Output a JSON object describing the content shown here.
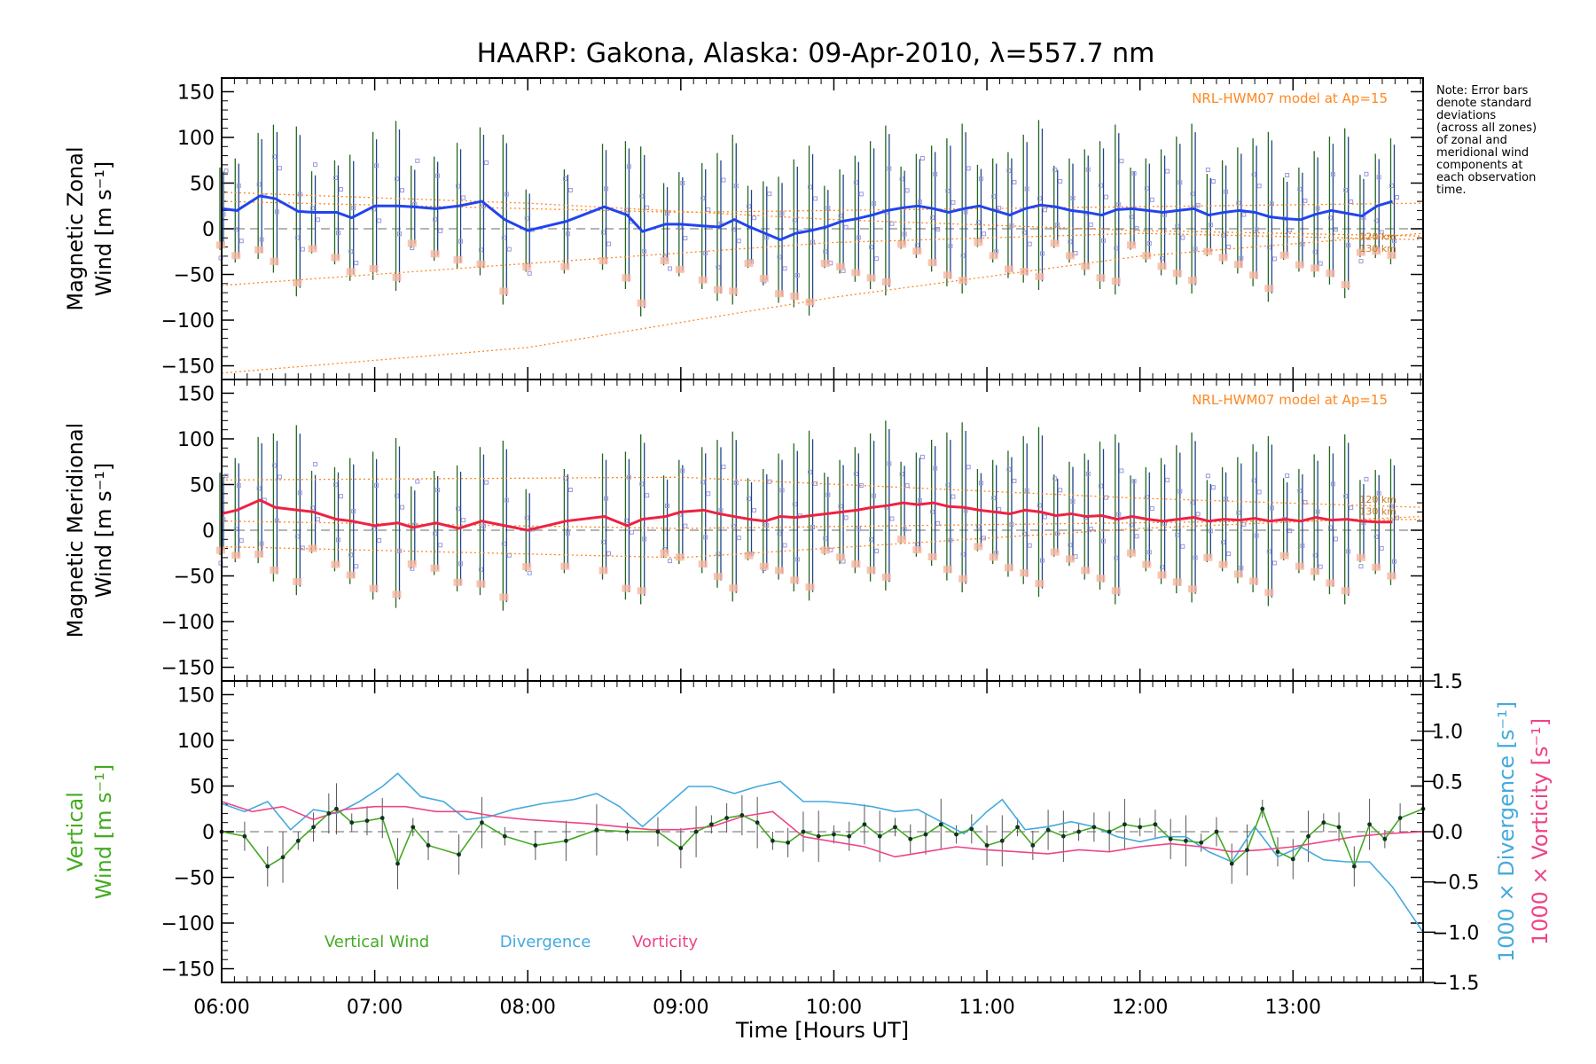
{
  "figure": {
    "title": "HAARP: Gakona,  Alaska: 09-Apr-2010, λ=557.7 nm",
    "note_lines": [
      "Note: Error bars",
      "denote standard",
      "deviations",
      "(across all zones)",
      "of zonal and",
      "meridional wind",
      "components at",
      "each observation",
      "time."
    ],
    "xlabel": "Time [Hours UT]",
    "xticks": [
      "06:00",
      "07:00",
      "08:00",
      "09:00",
      "10:00",
      "11:00",
      "12:00",
      "13:00"
    ],
    "colors": {
      "zonal": "#2244ee",
      "meridional": "#ee2244",
      "vertical": "#44aa22",
      "divergence": "#44aadd",
      "vorticity": "#ee4488",
      "model": "#ff8822",
      "points": "#9999dd"
    }
  },
  "chart_data": [
    {
      "type": "line",
      "panel": "zonal",
      "ylabel_line1": "Magnetic Zonal",
      "ylabel_line2": "Wind [m s⁻¹]",
      "yticks": [
        "150",
        "100",
        "50",
        "0",
        "−50",
        "−100",
        "−150"
      ],
      "ylim": [
        -165,
        165
      ],
      "xlim": [
        6.0,
        13.85
      ],
      "model_label": "NRL-HWM07 model at Ap=15",
      "model_alt_labels": [
        "120 km",
        "130 km"
      ],
      "series": [
        {
          "values_x": [
            6.0,
            6.1,
            6.25,
            6.35,
            6.5,
            6.6,
            6.75,
            6.85,
            7.0,
            7.15,
            7.25,
            7.4,
            7.55,
            7.7,
            7.85,
            8.0,
            8.25,
            8.5,
            8.65,
            8.75,
            8.9,
            9.0,
            9.15,
            9.25,
            9.35,
            9.45,
            9.55,
            9.65,
            9.75,
            9.85,
            9.95,
            10.05,
            10.15,
            10.25,
            10.35,
            10.45,
            10.55,
            10.65,
            10.75,
            10.85,
            10.95,
            11.05,
            11.15,
            11.25,
            11.35,
            11.45,
            11.55,
            11.65,
            11.75,
            11.85,
            11.95,
            12.05,
            12.15,
            12.25,
            12.35,
            12.45,
            12.55,
            12.65,
            12.75,
            12.85,
            12.95,
            13.05,
            13.15,
            13.25,
            13.35,
            13.45,
            13.55,
            13.65
          ],
          "values_y": [
            22,
            20,
            36,
            33,
            19,
            18,
            18,
            12,
            25,
            25,
            24,
            22,
            25,
            30,
            10,
            -2,
            8,
            24,
            15,
            -3,
            5,
            5,
            3,
            2,
            10,
            2,
            -5,
            -12,
            -5,
            -2,
            2,
            8,
            11,
            15,
            20,
            23,
            25,
            22,
            18,
            22,
            25,
            20,
            15,
            22,
            26,
            24,
            20,
            18,
            15,
            21,
            22,
            20,
            18,
            20,
            22,
            15,
            18,
            20,
            18,
            13,
            11,
            10,
            16,
            20,
            17,
            14,
            25,
            30
          ]
        }
      ]
    },
    {
      "type": "line",
      "panel": "meridional",
      "ylabel_line1": "Magnetic Meridional",
      "ylabel_line2": "Wind [m s⁻¹]",
      "yticks": [
        "150",
        "100",
        "50",
        "0",
        "−50",
        "−100",
        "−150"
      ],
      "ylim": [
        -165,
        165
      ],
      "xlim": [
        6.0,
        13.85
      ],
      "model_label": "NRL-HWM07 model at Ap=15",
      "model_alt_labels": [
        "120 km",
        "130 km"
      ],
      "series": [
        {
          "values_x": [
            6.0,
            6.1,
            6.25,
            6.35,
            6.5,
            6.6,
            6.75,
            6.85,
            7.0,
            7.15,
            7.25,
            7.4,
            7.55,
            7.7,
            7.85,
            8.0,
            8.25,
            8.5,
            8.65,
            8.75,
            8.9,
            9.0,
            9.15,
            9.25,
            9.35,
            9.45,
            9.55,
            9.65,
            9.75,
            9.85,
            9.95,
            10.05,
            10.15,
            10.25,
            10.35,
            10.45,
            10.55,
            10.65,
            10.75,
            10.85,
            10.95,
            11.05,
            11.15,
            11.25,
            11.35,
            11.45,
            11.55,
            11.65,
            11.75,
            11.85,
            11.95,
            12.05,
            12.15,
            12.25,
            12.35,
            12.45,
            12.55,
            12.65,
            12.75,
            12.85,
            12.95,
            13.05,
            13.15,
            13.25,
            13.35,
            13.45,
            13.55,
            13.65
          ],
          "values_y": [
            18,
            22,
            33,
            25,
            22,
            20,
            12,
            10,
            5,
            8,
            3,
            8,
            2,
            10,
            5,
            0,
            10,
            15,
            5,
            12,
            15,
            20,
            22,
            18,
            15,
            12,
            10,
            15,
            14,
            16,
            18,
            20,
            22,
            25,
            27,
            30,
            28,
            30,
            26,
            25,
            22,
            20,
            18,
            22,
            20,
            16,
            18,
            15,
            16,
            12,
            15,
            12,
            10,
            12,
            14,
            10,
            12,
            11,
            13,
            10,
            12,
            10,
            14,
            11,
            12,
            10,
            9,
            9
          ]
        }
      ]
    },
    {
      "type": "line",
      "panel": "vertical",
      "ylabel_line1": "Vertical",
      "ylabel_line2": "Wind [m s⁻¹]",
      "y2label_div": "1000 × Divergence [s⁻¹]",
      "y2label_vort": "1000 × Vorticity [s⁻¹]",
      "yticks": [
        "150",
        "100",
        "50",
        "0",
        "−50",
        "−100",
        "−150"
      ],
      "y2ticks": [
        "1.5",
        "1.0",
        "0.5",
        "0.0",
        "−0.5",
        "−1.0",
        "−1.5"
      ],
      "ylim": [
        -165,
        165
      ],
      "y2lim": [
        -1.5,
        1.5
      ],
      "xlim": [
        6.0,
        13.85
      ],
      "legend": [
        "Vertical Wind",
        "Divergence",
        "Vorticity"
      ],
      "series": [
        {
          "name": "Vertical Wind",
          "values_x": [
            6.0,
            6.15,
            6.3,
            6.4,
            6.5,
            6.6,
            6.7,
            6.75,
            6.85,
            6.95,
            7.05,
            7.15,
            7.25,
            7.35,
            7.55,
            7.7,
            7.85,
            8.05,
            8.25,
            8.45,
            8.65,
            8.85,
            9.0,
            9.1,
            9.2,
            9.3,
            9.4,
            9.5,
            9.6,
            9.7,
            9.8,
            9.9,
            10.0,
            10.1,
            10.2,
            10.3,
            10.4,
            10.5,
            10.6,
            10.7,
            10.8,
            10.9,
            11.0,
            11.1,
            11.2,
            11.3,
            11.4,
            11.5,
            11.6,
            11.7,
            11.8,
            11.9,
            12.0,
            12.1,
            12.2,
            12.3,
            12.4,
            12.5,
            12.6,
            12.7,
            12.8,
            12.9,
            13.0,
            13.1,
            13.2,
            13.3,
            13.4,
            13.5,
            13.6,
            13.7,
            13.85
          ],
          "values_y": [
            0,
            -5,
            -38,
            -28,
            -10,
            5,
            20,
            25,
            10,
            12,
            15,
            -35,
            5,
            -15,
            -25,
            10,
            -5,
            -15,
            -10,
            2,
            0,
            0,
            -18,
            0,
            8,
            15,
            18,
            10,
            -10,
            -12,
            0,
            -5,
            -3,
            -5,
            8,
            -5,
            5,
            -8,
            -3,
            8,
            -3,
            3,
            -15,
            -10,
            5,
            -15,
            2,
            -5,
            0,
            5,
            0,
            8,
            5,
            8,
            -8,
            -10,
            -12,
            0,
            -35,
            -20,
            25,
            -22,
            -30,
            -5,
            10,
            5,
            -38,
            8,
            -8,
            15,
            25
          ]
        },
        {
          "name": "Divergence",
          "values_x": [
            6.0,
            6.15,
            6.3,
            6.45,
            6.6,
            6.75,
            6.9,
            7.05,
            7.15,
            7.3,
            7.45,
            7.6,
            7.75,
            7.9,
            8.1,
            8.3,
            8.45,
            8.6,
            8.75,
            8.9,
            9.05,
            9.2,
            9.35,
            9.5,
            9.65,
            9.8,
            9.95,
            10.1,
            10.25,
            10.4,
            10.55,
            10.7,
            10.85,
            11.0,
            11.1,
            11.25,
            11.4,
            11.55,
            11.7,
            11.85,
            12.0,
            12.15,
            12.3,
            12.45,
            12.6,
            12.75,
            12.9,
            13.05,
            13.2,
            13.35,
            13.5,
            13.65,
            13.85
          ],
          "values_y": [
            0.28,
            0.2,
            0.3,
            0.02,
            0.22,
            0.18,
            0.3,
            0.45,
            0.58,
            0.35,
            0.3,
            0.12,
            0.15,
            0.22,
            0.28,
            0.32,
            0.38,
            0.25,
            0.05,
            0.25,
            0.45,
            0.45,
            0.38,
            0.45,
            0.5,
            0.3,
            0.3,
            0.28,
            0.25,
            0.2,
            0.22,
            0.1,
            -0.02,
            0.2,
            0.32,
            0.02,
            0.05,
            0.1,
            0.05,
            -0.05,
            -0.1,
            -0.05,
            -0.05,
            -0.2,
            -0.3,
            0.05,
            -0.25,
            -0.15,
            -0.28,
            -0.3,
            -0.3,
            -0.55,
            -1.0
          ]
        },
        {
          "name": "Vorticity",
          "values_x": [
            6.0,
            6.2,
            6.4,
            6.6,
            6.8,
            7.0,
            7.2,
            7.4,
            7.6,
            7.8,
            8.0,
            8.2,
            8.4,
            8.6,
            8.8,
            9.0,
            9.2,
            9.4,
            9.6,
            9.8,
            10.0,
            10.2,
            10.4,
            10.6,
            10.8,
            11.0,
            11.2,
            11.4,
            11.6,
            11.8,
            12.0,
            12.2,
            12.4,
            12.6,
            12.8,
            13.0,
            13.2,
            13.4,
            13.6,
            13.85
          ],
          "values_y": [
            0.3,
            0.2,
            0.25,
            0.12,
            0.22,
            0.25,
            0.25,
            0.2,
            0.2,
            0.15,
            0.12,
            0.1,
            0.08,
            0.05,
            0.02,
            0.02,
            0.05,
            0.15,
            0.2,
            -0.05,
            -0.1,
            -0.15,
            -0.25,
            -0.2,
            -0.15,
            -0.18,
            -0.2,
            -0.22,
            -0.18,
            -0.2,
            -0.15,
            -0.12,
            -0.15,
            -0.2,
            -0.18,
            -0.15,
            -0.1,
            -0.05,
            -0.02,
            0.0
          ]
        }
      ]
    }
  ]
}
